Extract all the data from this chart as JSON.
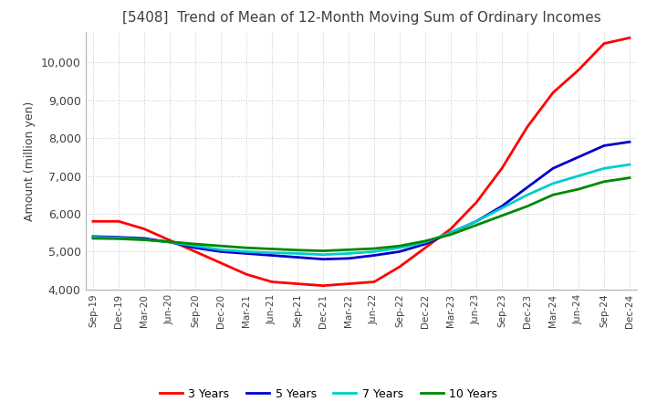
{
  "title": "[5408]  Trend of Mean of 12-Month Moving Sum of Ordinary Incomes",
  "ylabel": "Amount (million yen)",
  "ylim": [
    4000,
    10800
  ],
  "yticks": [
    4000,
    5000,
    6000,
    7000,
    8000,
    9000,
    10000
  ],
  "background_color": "#ffffff",
  "grid_color": "#c8c8c8",
  "title_color": "#404040",
  "legend": [
    "3 Years",
    "5 Years",
    "7 Years",
    "10 Years"
  ],
  "line_colors": [
    "#ff0000",
    "#0000cc",
    "#00cccc",
    "#008800"
  ],
  "x_labels": [
    "Sep-19",
    "Dec-19",
    "Mar-20",
    "Jun-20",
    "Sep-20",
    "Dec-20",
    "Mar-21",
    "Jun-21",
    "Sep-21",
    "Dec-21",
    "Mar-22",
    "Jun-22",
    "Sep-22",
    "Dec-22",
    "Mar-23",
    "Jun-23",
    "Sep-23",
    "Dec-23",
    "Mar-24",
    "Jun-24",
    "Sep-24",
    "Dec-24"
  ],
  "series_3y": [
    5800,
    5800,
    5600,
    5300,
    5000,
    4700,
    4400,
    4200,
    4150,
    4100,
    4150,
    4200,
    4600,
    5100,
    5600,
    6300,
    7200,
    8300,
    9200,
    9800,
    10500,
    10650
  ],
  "series_5y": [
    5400,
    5380,
    5350,
    5250,
    5100,
    5000,
    4950,
    4900,
    4850,
    4800,
    4820,
    4900,
    5000,
    5200,
    5500,
    5800,
    6200,
    6700,
    7200,
    7500,
    7800,
    7900
  ],
  "series_7y": [
    5380,
    5360,
    5320,
    5250,
    5150,
    5050,
    5000,
    4970,
    4950,
    4920,
    4950,
    5000,
    5100,
    5250,
    5500,
    5800,
    6150,
    6500,
    6800,
    7000,
    7200,
    7300
  ],
  "series_10y": [
    5350,
    5340,
    5310,
    5260,
    5200,
    5150,
    5100,
    5070,
    5040,
    5020,
    5050,
    5080,
    5150,
    5280,
    5450,
    5700,
    5950,
    6200,
    6500,
    6650,
    6850,
    6950
  ]
}
